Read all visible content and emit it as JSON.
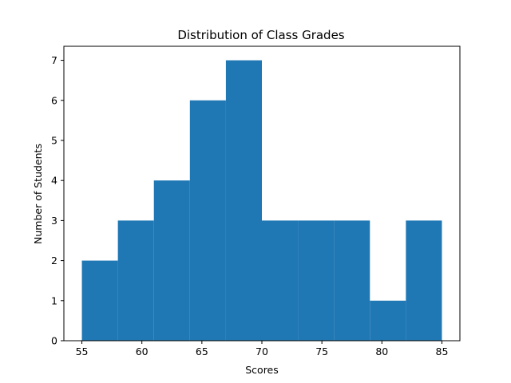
{
  "chart_data": {
    "type": "bar",
    "title": "Distribution of Class Grades",
    "xlabel": "Scores",
    "ylabel": "Number of Students",
    "bins": [
      {
        "start": 55,
        "end": 58,
        "count": 2
      },
      {
        "start": 58,
        "end": 61,
        "count": 3
      },
      {
        "start": 61,
        "end": 64,
        "count": 4
      },
      {
        "start": 64,
        "end": 67,
        "count": 6
      },
      {
        "start": 67,
        "end": 70,
        "count": 7
      },
      {
        "start": 70,
        "end": 73,
        "count": 3
      },
      {
        "start": 73,
        "end": 76,
        "count": 3
      },
      {
        "start": 76,
        "end": 79,
        "count": 3
      },
      {
        "start": 79,
        "end": 82,
        "count": 1
      },
      {
        "start": 82,
        "end": 85,
        "count": 3
      }
    ],
    "xlim": [
      53.5,
      86.5
    ],
    "ylim": [
      0,
      7.35
    ],
    "xticks": [
      "55",
      "60",
      "65",
      "70",
      "75",
      "80",
      "85"
    ],
    "yticks": [
      "0",
      "1",
      "2",
      "3",
      "4",
      "5",
      "6",
      "7"
    ],
    "bar_color": "#1f77b4",
    "grid": false,
    "legend": "none"
  }
}
